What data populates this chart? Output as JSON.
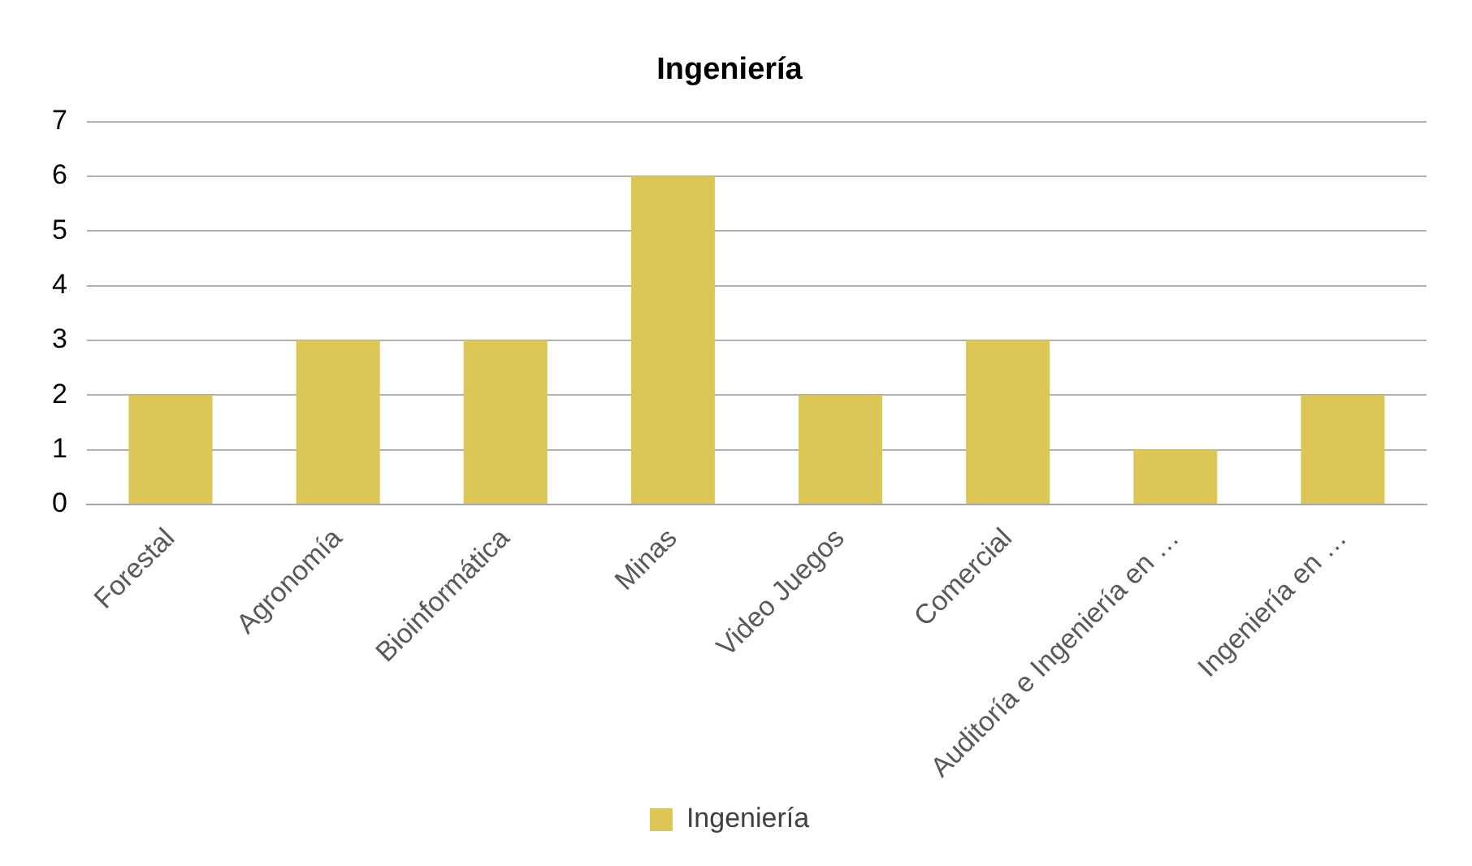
{
  "chart_data": {
    "type": "bar",
    "title": "Ingeniería",
    "categories": [
      "Forestal",
      "Agronomía",
      "Bioinformática",
      "Minas",
      "Video Juegos",
      "Comercial",
      "Auditoría e Ingeniería en …",
      "Ingeniería en …"
    ],
    "series": [
      {
        "name": "Ingeniería",
        "color": "#dcc655",
        "values": [
          2,
          3,
          3,
          6,
          2,
          3,
          1,
          2
        ]
      }
    ],
    "ylim": [
      0,
      7
    ],
    "yticks": [
      0,
      1,
      2,
      3,
      4,
      5,
      6,
      7
    ],
    "grid": "y",
    "legend": "bottom"
  }
}
